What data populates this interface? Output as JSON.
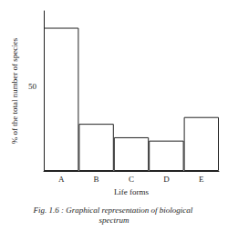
{
  "chart_data": {
    "type": "bar",
    "title": "Fig. 1.6 : Graphical representation of biological spectrum",
    "xlabel": "Life forms",
    "ylabel": "% of the total number of species",
    "categories": [
      "A",
      "B",
      "C",
      "D",
      "E"
    ],
    "values": [
      85,
      28,
      20,
      18,
      32
    ],
    "color": "#ffffff",
    "ylim": [
      0,
      95
    ],
    "yticks": [
      50
    ],
    "grid": false
  }
}
